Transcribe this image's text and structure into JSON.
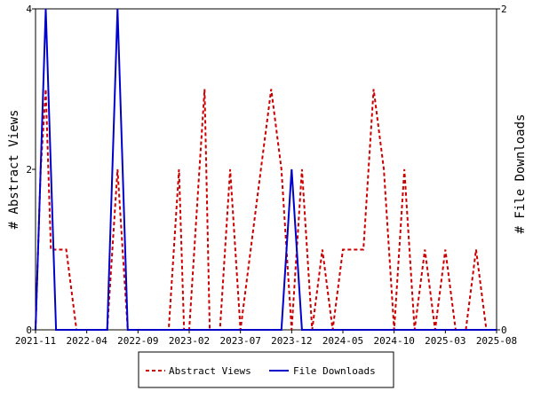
{
  "chart_data": {
    "type": "line",
    "x_ticks": [
      "2021-11",
      "2022-04",
      "2022-09",
      "2023-02",
      "2023-07",
      "2023-12",
      "2024-05",
      "2024-10",
      "2025-03",
      "2025-08"
    ],
    "y_left": {
      "label": "# Abstract Views",
      "range": [
        0,
        4
      ],
      "ticks": [
        "0",
        "2",
        "4"
      ]
    },
    "y_right": {
      "label": "# File Downloads",
      "range": [
        0,
        2
      ],
      "ticks": [
        "0",
        "2"
      ]
    },
    "series": [
      {
        "name": "Abstract Views",
        "axis": "left",
        "color": "#cc0000",
        "style": "dashed",
        "x": [
          0.0,
          0.5,
          1.0,
          1.5,
          2.0,
          3.0,
          4.0,
          7.0,
          7.5,
          8.0,
          8.5,
          9.0,
          13.0,
          14.0,
          14.5,
          15.0,
          16.0,
          16.5,
          17.0,
          18.0,
          19.0,
          20.0,
          21.0,
          22.0,
          23.0,
          24.0,
          25.0,
          26.0,
          27.0,
          28.0,
          29.0,
          30.0,
          31.0,
          32.0,
          33.0,
          34.0,
          35.0,
          36.0,
          37.0,
          38.0,
          39.0,
          40.0,
          41.0,
          42.0,
          43.0,
          44.0,
          45.0
        ],
        "values": [
          0,
          2,
          3,
          1,
          1,
          1,
          0,
          0,
          1,
          2,
          1,
          0,
          0,
          2,
          0,
          0,
          2,
          3,
          0,
          0,
          2,
          0,
          1,
          2,
          3,
          2,
          0,
          2,
          0,
          1,
          0,
          1,
          1,
          1,
          3,
          2,
          0,
          2,
          0,
          1,
          0,
          1,
          0,
          0,
          1,
          0,
          0
        ]
      },
      {
        "name": "File Downloads",
        "axis": "right",
        "color": "#0000cc",
        "style": "solid",
        "x": [
          0.0,
          1.0,
          2.0,
          7.0,
          8.0,
          9.0,
          24.0,
          25.0,
          26.0,
          45.0
        ],
        "values": [
          0,
          2,
          0,
          0,
          2,
          0,
          0,
          1,
          0,
          0
        ]
      }
    ],
    "x_range": [
      0,
      45
    ],
    "grid": false,
    "legend_position": "bottom"
  }
}
